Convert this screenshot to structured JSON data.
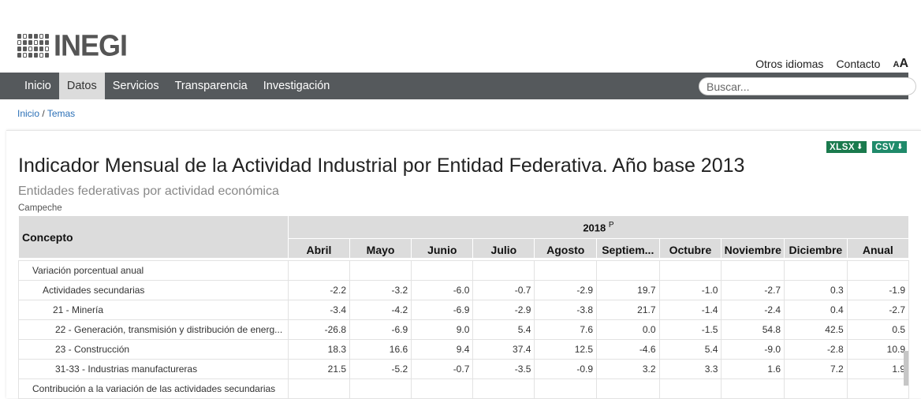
{
  "header": {
    "logo_text": "INEGI",
    "links": [
      "Otros idiomas",
      "Contacto"
    ],
    "font_toggle_small": "A",
    "font_toggle_large": "A"
  },
  "nav": {
    "items": [
      "Inicio",
      "Datos",
      "Servicios",
      "Transparencia",
      "Investigación"
    ],
    "active": "Datos",
    "search_placeholder": "Buscar..."
  },
  "breadcrumb": {
    "home": "Inicio",
    "separator": "/",
    "current": "Temas"
  },
  "downloads": {
    "xlsx": "XLSX",
    "csv": "CSV",
    "icon": "download-icon"
  },
  "page": {
    "title": "Indicador Mensual de la Actividad Industrial por Entidad Federativa. Año base 2013",
    "subtitle": "Entidades federativas por actividad económica",
    "entity": "Campeche"
  },
  "table": {
    "concept_header": "Concepto",
    "year": "2018",
    "year_mark": "P",
    "months": [
      "Abril",
      "Mayo",
      "Junio",
      "Julio",
      "Agosto",
      "Septiem...",
      "Octubre",
      "Noviembre",
      "Diciembre",
      "Anual"
    ],
    "rows": [
      {
        "label": "Variación porcentual anual",
        "level": 0,
        "values": [
          "",
          "",
          "",
          "",
          "",
          "",
          "",
          "",
          "",
          ""
        ]
      },
      {
        "label": "Actividades secundarias",
        "level": 1,
        "values": [
          "-2.2",
          "-3.2",
          "-6.0",
          "-0.7",
          "-2.9",
          "19.7",
          "-1.0",
          "-2.7",
          "0.3",
          "-1.9"
        ]
      },
      {
        "label": "21 - Minería",
        "level": 2,
        "values": [
          "-3.4",
          "-4.2",
          "-6.9",
          "-2.9",
          "-3.8",
          "21.7",
          "-1.4",
          "-2.4",
          "0.4",
          "-2.7"
        ]
      },
      {
        "label": "22 - Generación, transmisión y distribución de energ...",
        "level": 3,
        "values": [
          "-26.8",
          "-6.9",
          "9.0",
          "5.4",
          "7.6",
          "0.0",
          "-1.5",
          "54.8",
          "42.5",
          "0.5"
        ]
      },
      {
        "label": "23 - Construcción",
        "level": 3,
        "values": [
          "18.3",
          "16.6",
          "9.4",
          "37.4",
          "12.5",
          "-4.6",
          "5.4",
          "-9.0",
          "-2.8",
          "10.9"
        ]
      },
      {
        "label": "31-33 - Industrias manufactureras",
        "level": 3,
        "values": [
          "21.5",
          "-5.2",
          "-0.7",
          "-3.5",
          "-0.9",
          "3.2",
          "3.3",
          "1.6",
          "7.2",
          "1.9"
        ]
      },
      {
        "label": "Contribución a la variación de las actividades secundarias",
        "level": 0,
        "values": [
          "",
          "",
          "",
          "",
          "",
          "",
          "",
          "",
          "",
          ""
        ]
      }
    ]
  }
}
